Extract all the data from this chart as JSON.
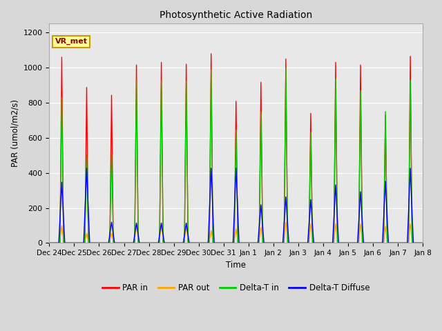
{
  "title": "Photosynthetic Active Radiation",
  "ylabel": "PAR (umol/m2/s)",
  "xlabel": "Time",
  "annotation": "VR_met",
  "ylim": [
    0,
    1250
  ],
  "fig_bg_color": "#d8d8d8",
  "plot_bg_color": "#e8e8e8",
  "legend_labels": [
    "PAR in",
    "PAR out",
    "Delta-T in",
    "Delta-T Diffuse"
  ],
  "legend_colors": [
    "#ff0000",
    "#ffa500",
    "#00cc00",
    "#0000ff"
  ],
  "line_width": 1.0,
  "x_tick_labels": [
    "Dec 24",
    "Dec 25",
    "Dec 26",
    "Dec 27",
    "Dec 28",
    "Dec 29",
    "Dec 30",
    "Dec 31",
    "Jan 1",
    "Jan 2",
    "Jan 3",
    "Jan 4",
    "Jan 5",
    "Jan 6",
    "Jan 7",
    "Jan 8"
  ],
  "par_in_peaks": [
    1075,
    900,
    855,
    1030,
    1045,
    1035,
    1095,
    820,
    930,
    1065,
    750,
    1045,
    1030,
    740,
    1080
  ],
  "par_out_peaks": [
    100,
    55,
    60,
    110,
    110,
    100,
    70,
    80,
    90,
    120,
    110,
    110,
    110,
    95,
    110
  ],
  "delta_t_peaks": [
    840,
    510,
    510,
    940,
    940,
    935,
    1000,
    655,
    760,
    1010,
    640,
    950,
    880,
    760,
    940
  ],
  "delta_t_diff_peaks": [
    350,
    430,
    120,
    115,
    115,
    115,
    430,
    430,
    220,
    265,
    250,
    335,
    295,
    355,
    430
  ]
}
